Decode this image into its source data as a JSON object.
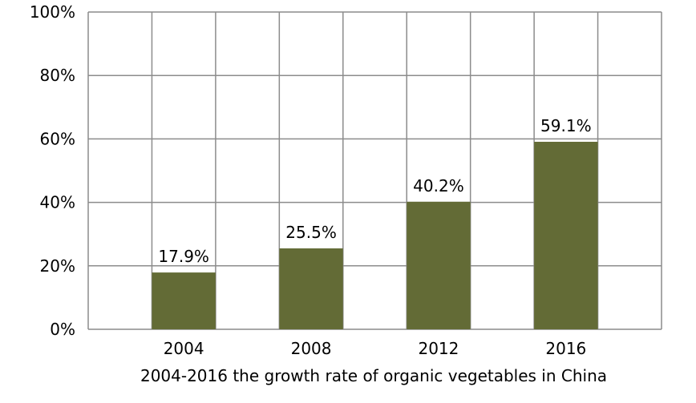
{
  "chart_data": {
    "type": "bar",
    "title": "2004-2016 the growth rate of organic vegetables in China",
    "xlabel": "",
    "ylabel": "",
    "categories": [
      "2004",
      "2008",
      "2012",
      "2016"
    ],
    "series": [
      {
        "values": [
          17.9,
          25.5,
          40.2,
          59.1
        ],
        "data_labels": [
          "17.9%",
          "25.5%",
          "40.2%",
          "59.1%"
        ],
        "color": "#636b36"
      }
    ],
    "ylim": [
      0,
      100
    ],
    "yticks": [
      0,
      20,
      40,
      60,
      80,
      100
    ],
    "ytick_labels": [
      "0%",
      "20%",
      "40%",
      "60%",
      "80%",
      "100%"
    ],
    "grid": true,
    "legend": "none",
    "colors": {
      "bar": "#636b36",
      "grid": "#8c8c8c",
      "text": "#000000"
    }
  }
}
